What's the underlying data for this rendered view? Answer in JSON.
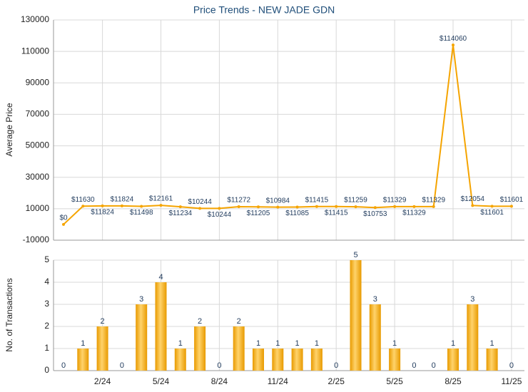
{
  "chart_data": [
    {
      "type": "line",
      "title": "Price Trends - NEW JADE GDN",
      "ylabel": "Average Price",
      "color": "#f5a400",
      "values": [
        0,
        11630,
        11824,
        11824,
        11498,
        12161,
        11234,
        10244,
        10244,
        11272,
        11205,
        10984,
        11085,
        11415,
        11415,
        11259,
        10753,
        11329,
        11329,
        11329,
        114060,
        12054,
        11601,
        11601
      ],
      "value_labels": [
        "$0",
        "$11630",
        "$11824",
        "$11824",
        "$11498",
        "$12161",
        "$11234",
        "$10244",
        "$10244",
        "$11272",
        "$11205",
        "$10984",
        "$11085",
        "$11415",
        "$11415",
        "$11259",
        "$10753",
        "$11329",
        "$11329",
        "$11329",
        "$114060",
        "$12054",
        "$11601",
        "$11601"
      ],
      "ylim": [
        -10000,
        130000
      ],
      "yticks": [
        -10000,
        10000,
        30000,
        50000,
        70000,
        90000,
        110000,
        130000
      ],
      "grid": true
    },
    {
      "type": "bar",
      "ylabel": "No. of Transactions",
      "color": "#f5a400",
      "categories": [
        null,
        null,
        "2/24",
        null,
        null,
        "5/24",
        null,
        null,
        "8/24",
        null,
        null,
        "11/24",
        null,
        null,
        "2/25",
        null,
        null,
        "5/25",
        null,
        null,
        "8/25",
        null,
        null,
        "11/25"
      ],
      "values": [
        0,
        1,
        2,
        0,
        3,
        4,
        1,
        2,
        0,
        2,
        1,
        1,
        1,
        1,
        0,
        5,
        3,
        1,
        0,
        0,
        1,
        3,
        1,
        0
      ],
      "ylim": [
        0,
        5
      ],
      "yticks": [
        0,
        1,
        2,
        3,
        4,
        5
      ],
      "grid": true
    }
  ]
}
